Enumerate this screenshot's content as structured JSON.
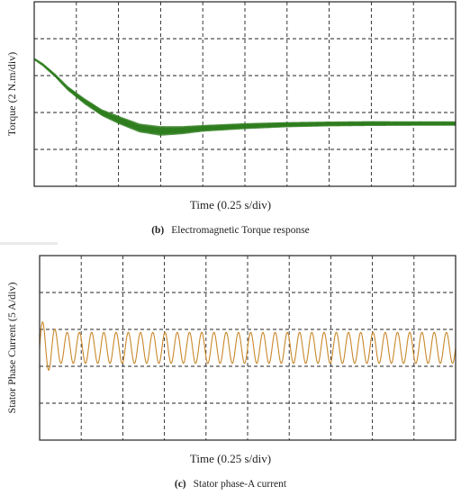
{
  "figures": [
    {
      "caption_tag": "(b)",
      "caption_text": "Electromagnetic Torque response",
      "xlabel": "Time (0.25 s/div)",
      "ylabel": "Torque  (2 N.m/div)"
    },
    {
      "caption_tag": "(c)",
      "caption_text": "Stator phase-A current",
      "xlabel": "Time (0.25 s/div)",
      "ylabel": "Stator Phase Current (5 A/div)"
    }
  ],
  "colors": {
    "torque": "#2e7d1e",
    "current": "#c8882a",
    "grid": "#222222"
  },
  "chart_data": [
    {
      "type": "line",
      "title": "Electromagnetic Torque response",
      "xlabel": "Time (0.25 s/div)",
      "ylabel": "Torque  (2 N.m/div)",
      "xlim": [
        0,
        10
      ],
      "ylim": [
        0,
        5
      ],
      "grid": true,
      "x_divisions": 10,
      "y_divisions": 5,
      "series": [
        {
          "x": [
            0,
            0.2,
            0.5,
            0.8,
            1.2,
            1.6,
            2.0,
            2.5,
            3.0,
            3.5,
            4.0,
            5.0,
            6.0,
            7.0,
            8.0,
            9.0,
            10.0
          ],
          "y_mean": [
            3.45,
            3.3,
            3.0,
            2.65,
            2.3,
            2.0,
            1.8,
            1.58,
            1.5,
            1.52,
            1.57,
            1.63,
            1.67,
            1.69,
            1.7,
            1.7,
            1.7
          ],
          "ripple_amplitude": [
            0.03,
            0.04,
            0.05,
            0.06,
            0.08,
            0.09,
            0.11,
            0.12,
            0.13,
            0.11,
            0.09,
            0.08,
            0.07,
            0.065,
            0.065,
            0.06,
            0.06
          ]
        }
      ]
    },
    {
      "type": "line",
      "title": "Stator phase-A current",
      "xlabel": "Time (0.25 s/div)",
      "ylabel": "Stator Phase Current (5 A/div)",
      "xlim": [
        0,
        10
      ],
      "ylim": [
        -2.5,
        2.5
      ],
      "grid": true,
      "x_divisions": 10,
      "y_divisions": 5,
      "series": [
        {
          "cycles": 34,
          "steady_amplitude": 0.42,
          "initial_amplitude": 0.75,
          "settle_time": 0.5
        }
      ]
    }
  ]
}
